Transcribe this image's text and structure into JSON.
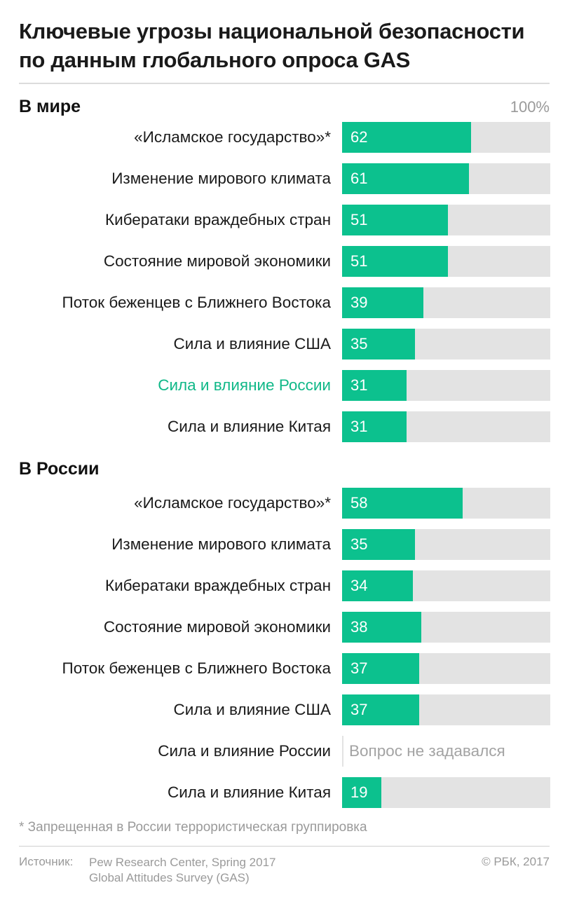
{
  "title_lines": [
    "Ключевые угрозы национальной безопасности",
    "по данным глобального опроса GAS"
  ],
  "max_label": "100%",
  "colors": {
    "bar": "#0cc18e",
    "track": "#e3e3e3",
    "highlight": "#10b888",
    "muted": "#9a9a9a"
  },
  "chart_data": [
    {
      "type": "bar",
      "title": "В мире",
      "orientation": "horizontal",
      "xlim": [
        0,
        100
      ],
      "categories": [
        "«Исламское государство»*",
        "Изменение мирового климата",
        "Кибератаки враждебных стран",
        "Состояние мировой экономики",
        "Поток беженцев с Ближнего Востока",
        "Сила и влияние США",
        "Сила и влияние России",
        "Сила и влияние Китая"
      ],
      "values": [
        62,
        61,
        51,
        51,
        39,
        35,
        31,
        31
      ],
      "highlighted_category": "Сила и влияние России"
    },
    {
      "type": "bar",
      "title": "В России",
      "orientation": "horizontal",
      "xlim": [
        0,
        100
      ],
      "categories": [
        "«Исламское государство»*",
        "Изменение мирового климата",
        "Кибератаки враждебных стран",
        "Состояние мировой экономики",
        "Поток беженцев с Ближнего Востока",
        "Сила и влияние США",
        "Сила и влияние России",
        "Сила и влияние Китая"
      ],
      "values": [
        58,
        35,
        34,
        38,
        37,
        37,
        null,
        19
      ],
      "notes": {
        "Сила и влияние России": "Вопрос не задавался"
      }
    }
  ],
  "footnote": "* Запрещенная в России террористическая группировка",
  "source": {
    "label": "Источник:",
    "lines": [
      "Pew Research Center, Spring 2017",
      "Global Attitudes Survey (GAS)"
    ]
  },
  "copyright": "© РБК, 2017"
}
